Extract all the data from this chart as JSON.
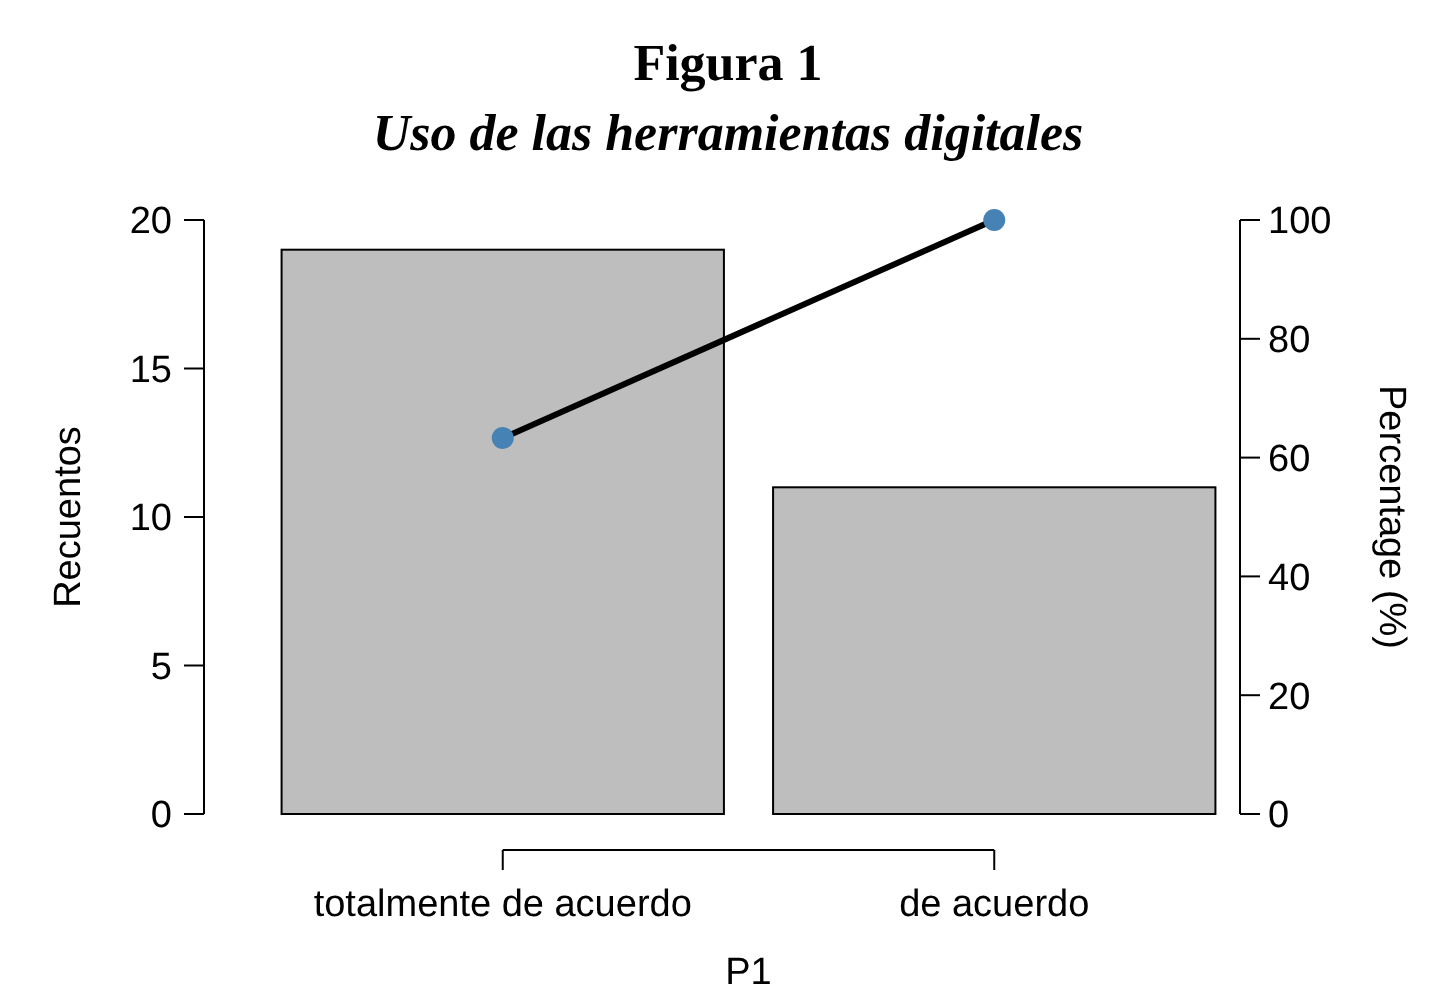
{
  "chart_data": {
    "type": "bar",
    "title": "Figura 1",
    "subtitle": "Uso de las herramientas digitales",
    "xlabel": "P1",
    "ylabel": "Recuentos",
    "y2label": "Percentage (%)",
    "categories": [
      "totalmente de acuerdo",
      "de acuerdo"
    ],
    "series": [
      {
        "color": "#bebebe",
        "values": [
          19,
          11
        ]
      },
      {
        "type": "line",
        "axis": "y2",
        "color": "#4682b4",
        "values": [
          63.3,
          100
        ],
        "marker": "circle"
      }
    ],
    "ylim": [
      0,
      20
    ],
    "yticks": [
      0,
      5,
      10,
      15,
      20
    ],
    "y2lim": [
      0,
      100
    ],
    "y2ticks": [
      0,
      20,
      40,
      60,
      80,
      100
    ],
    "grid": false
  }
}
